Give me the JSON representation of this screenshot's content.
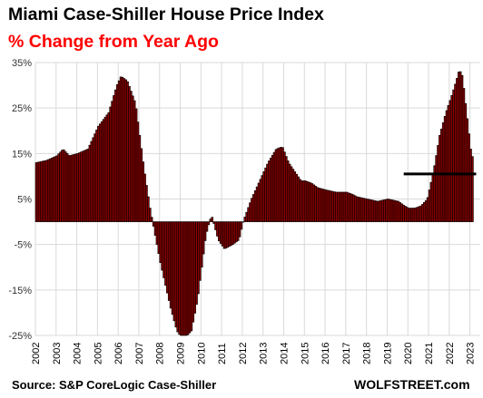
{
  "chart_data": {
    "type": "bar",
    "title": "Miami Case-Shiller House Price Index",
    "subtitle": "% Change from Year Ago",
    "ylim": [
      -25,
      35
    ],
    "yticks": [
      35,
      25,
      15,
      5,
      -5,
      -15,
      -25
    ],
    "ytick_labels": [
      "35%",
      "25%",
      "15%",
      "5%",
      "-5%",
      "-15%",
      "-25%"
    ],
    "x_tick_labels": [
      "2002",
      "2003",
      "2004",
      "2005",
      "2006",
      "2007",
      "2008",
      "2009",
      "2010",
      "2011",
      "2012",
      "2013",
      "2014",
      "2015",
      "2016",
      "2017",
      "2018",
      "2019",
      "2020",
      "2021",
      "2022",
      "2023"
    ],
    "grid": true,
    "anchors": {
      "t": [
        2002.0,
        2002.5,
        2003.0,
        2003.3,
        2003.6,
        2004.0,
        2004.5,
        2005.0,
        2005.5,
        2005.9,
        2006.1,
        2006.4,
        2006.8,
        2007.2,
        2007.5,
        2008.0,
        2008.5,
        2008.8,
        2009.1,
        2009.5,
        2009.8,
        2010.0,
        2010.2,
        2010.4,
        2010.5,
        2010.8,
        2011.1,
        2011.5,
        2011.8,
        2012.0,
        2012.4,
        2012.8,
        2013.2,
        2013.6,
        2013.9,
        2014.2,
        2014.5,
        2014.8,
        2015.0,
        2015.3,
        2015.6,
        2016.0,
        2016.5,
        2017.0,
        2017.3,
        2017.5,
        2018.0,
        2018.5,
        2019.0,
        2019.5,
        2019.8,
        2020.0,
        2020.3,
        2020.6,
        2020.9,
        2021.2,
        2021.5,
        2021.8,
        2022.1,
        2022.3,
        2022.45,
        2022.6,
        2022.8,
        2023.0,
        2023.15
      ],
      "v": [
        13,
        13.5,
        14.5,
        16,
        14.5,
        15,
        16,
        21,
        24,
        30,
        32,
        31,
        26,
        12,
        3,
        -9,
        -19,
        -24,
        -26,
        -24,
        -17,
        -10,
        -3,
        0.5,
        1,
        -4,
        -6,
        -5,
        -4,
        0,
        5,
        9,
        13,
        16,
        16.5,
        13,
        11,
        9,
        9,
        8.5,
        7.5,
        7,
        6.5,
        6.5,
        6,
        5.5,
        5,
        4.5,
        5,
        4.5,
        3.5,
        3,
        3,
        3.5,
        5,
        11,
        19,
        24,
        28,
        31,
        33.5,
        32,
        24,
        16,
        13
      ]
    },
    "annotations": [
      {
        "type": "hline",
        "value": 10.5,
        "x_start": 2019.8,
        "x_end": 2023.3,
        "color": "#000000"
      }
    ],
    "bar_color": "#8b0000",
    "bar_edge_color": "#000000",
    "source": "Source: S&P CoreLogic Case-Shiller",
    "brand": "WOLFSTREET.com"
  },
  "colors": {
    "subtitle": "#ff0000",
    "grid": "#d9d9d9"
  }
}
